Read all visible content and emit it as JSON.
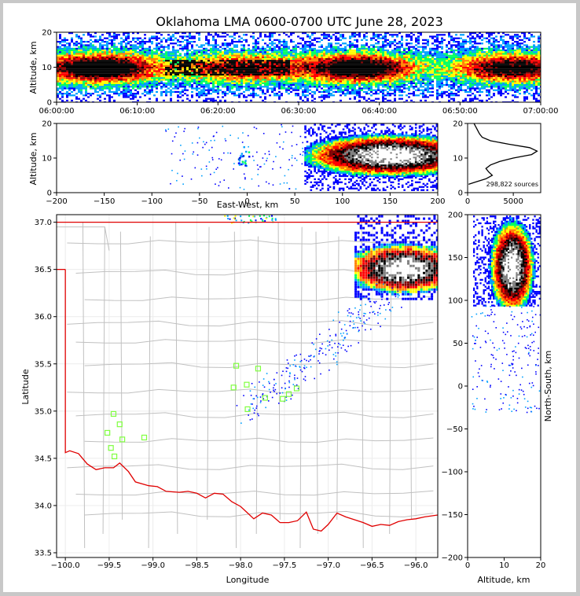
{
  "title": "Oklahoma LMA 0600-0700 UTC June 28, 2023",
  "colors": {
    "density_scale": [
      "#0000ff",
      "#00a0ff",
      "#00ff60",
      "#ffff00",
      "#ff8000",
      "#ff0000",
      "#800000",
      "#000000",
      "#808080",
      "#ffffff"
    ],
    "state_border": "#e00000",
    "county_lines": "#c0c0c0",
    "station_markers": "#80ff40",
    "altitude_histogram": "#000000"
  },
  "chart_data": [
    {
      "id": "time_height",
      "type": "heatmap",
      "ylabel": "Altitude, km",
      "xlabel": "",
      "ylim": [
        0,
        20
      ],
      "yticks": [
        "0",
        "10",
        "20"
      ],
      "xticks": [
        "06:00:00",
        "06:10:00",
        "06:20:00",
        "06:30:00",
        "06:40:00",
        "06:50:00",
        "07:00:00"
      ],
      "description_values": {
        "core_altitude_km": 10,
        "min_altitude_km": 2,
        "max_altitude_km": 20
      }
    },
    {
      "id": "ew_altitude",
      "type": "heatmap",
      "xlabel": "East-West, km",
      "ylabel": "Altitude, km",
      "xlim": [
        -200,
        200
      ],
      "ylim": [
        0,
        20
      ],
      "xticks": [
        "−200",
        "−150",
        "−100",
        "−50",
        "0",
        "50",
        "100",
        "150",
        "200"
      ],
      "yticks": [
        "0",
        "10",
        "20"
      ]
    },
    {
      "id": "altitude_histogram",
      "type": "line",
      "xlim": [
        0,
        8000
      ],
      "ylim": [
        0,
        20
      ],
      "xticks": [
        "0",
        "5000"
      ],
      "yticks": [
        "0",
        "10",
        "20"
      ],
      "annotation": "298,822 sources",
      "points": [
        [
          700,
          20
        ],
        [
          900,
          19
        ],
        [
          1100,
          18
        ],
        [
          1300,
          17
        ],
        [
          1600,
          16
        ],
        [
          2500,
          15
        ],
        [
          4500,
          14
        ],
        [
          6800,
          13
        ],
        [
          7600,
          12
        ],
        [
          7000,
          11
        ],
        [
          5000,
          10
        ],
        [
          3500,
          9
        ],
        [
          2500,
          8
        ],
        [
          2000,
          7
        ],
        [
          2300,
          6
        ],
        [
          2700,
          5
        ],
        [
          2000,
          4
        ],
        [
          800,
          3
        ],
        [
          100,
          2.4
        ]
      ]
    },
    {
      "id": "plan_view",
      "type": "heatmap",
      "xlabel": "Longitude",
      "ylabel": "Latitude",
      "xlim": [
        -100.1,
        -95.75
      ],
      "ylim": [
        33.45,
        37.08
      ],
      "xticks": [
        "−100.0",
        "−99.5",
        "−99.0",
        "−98.5",
        "−98.0",
        "−97.5",
        "−97.0",
        "−96.5",
        "−96.0"
      ],
      "yticks": [
        "33.5",
        "34.0",
        "34.5",
        "35.0",
        "35.5",
        "36.0",
        "36.5",
        "37.0"
      ],
      "stations": [
        [
          -99.45,
          34.97
        ],
        [
          -99.38,
          34.86
        ],
        [
          -99.52,
          34.77
        ],
        [
          -99.35,
          34.7
        ],
        [
          -99.1,
          34.72
        ],
        [
          -99.48,
          34.61
        ],
        [
          -99.44,
          34.52
        ],
        [
          -98.05,
          35.48
        ],
        [
          -97.8,
          35.45
        ],
        [
          -98.08,
          35.25
        ],
        [
          -97.93,
          35.28
        ],
        [
          -97.92,
          35.02
        ],
        [
          -97.72,
          35.14
        ],
        [
          -97.52,
          35.13
        ],
        [
          -97.45,
          35.18
        ],
        [
          -97.36,
          35.24
        ]
      ]
    },
    {
      "id": "ns_altitude",
      "type": "heatmap",
      "xlabel": "Altitude, km",
      "ylabel": "North-South, km",
      "xlim": [
        0,
        20
      ],
      "ylim": [
        -200,
        200
      ],
      "xticks": [
        "0",
        "10",
        "20"
      ],
      "yticks": [
        "−200",
        "−150",
        "−100",
        "−50",
        "0",
        "50",
        "100",
        "150",
        "200"
      ]
    }
  ]
}
